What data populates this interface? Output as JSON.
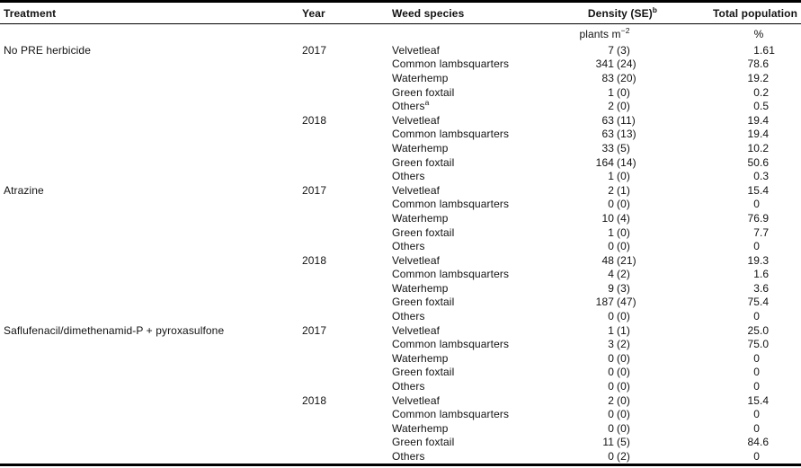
{
  "table": {
    "columns": [
      {
        "label": "Treatment"
      },
      {
        "label": "Year"
      },
      {
        "label": "Weed species"
      },
      {
        "label": "Density (SE)",
        "sup": "b"
      },
      {
        "label": "Total population"
      }
    ],
    "units": {
      "density": "plants m",
      "density_sup": "−2",
      "total": "%"
    },
    "rows": [
      {
        "treatment": "No PRE herbicide",
        "year": "2017",
        "species": "Velvetleaf",
        "density": "7 (3)",
        "total": "1.61"
      },
      {
        "treatment": "",
        "year": "",
        "species": "Common lambsquarters",
        "density": "341 (24)",
        "total": "78.6"
      },
      {
        "treatment": "",
        "year": "",
        "species": "Waterhemp",
        "density": "83 (20)",
        "total": "19.2"
      },
      {
        "treatment": "",
        "year": "",
        "species": "Green foxtail",
        "density": "1 (0)",
        "total": "0.2"
      },
      {
        "treatment": "",
        "year": "",
        "species": "Others",
        "sup": "a",
        "density": "2 (0)",
        "total": "0.5"
      },
      {
        "treatment": "",
        "year": "2018",
        "species": "Velvetleaf",
        "density": "63 (11)",
        "total": "19.4"
      },
      {
        "treatment": "",
        "year": "",
        "species": "Common lambsquarters",
        "density": "63 (13)",
        "total": "19.4"
      },
      {
        "treatment": "",
        "year": "",
        "species": "Waterhemp",
        "density": "33 (5)",
        "total": "10.2"
      },
      {
        "treatment": "",
        "year": "",
        "species": "Green foxtail",
        "density": "164 (14)",
        "total": "50.6"
      },
      {
        "treatment": "",
        "year": "",
        "species": "Others",
        "density": "1 (0)",
        "total": "0.3"
      },
      {
        "treatment": "Atrazine",
        "year": "2017",
        "species": "Velvetleaf",
        "density": "2 (1)",
        "total": "15.4"
      },
      {
        "treatment": "",
        "year": "",
        "species": "Common lambsquarters",
        "density": "0 (0)",
        "total": "0"
      },
      {
        "treatment": "",
        "year": "",
        "species": "Waterhemp",
        "density": "10 (4)",
        "total": "76.9"
      },
      {
        "treatment": "",
        "year": "",
        "species": "Green foxtail",
        "density": "1 (0)",
        "total": "7.7"
      },
      {
        "treatment": "",
        "year": "",
        "species": "Others",
        "density": "0 (0)",
        "total": "0"
      },
      {
        "treatment": "",
        "year": "2018",
        "species": "Velvetleaf",
        "density": "48 (21)",
        "total": "19.3"
      },
      {
        "treatment": "",
        "year": "",
        "species": "Common lambsquarters",
        "density": "4 (2)",
        "total": "1.6"
      },
      {
        "treatment": "",
        "year": "",
        "species": "Waterhemp",
        "density": "9 (3)",
        "total": "3.6"
      },
      {
        "treatment": "",
        "year": "",
        "species": "Green foxtail",
        "density": "187 (47)",
        "total": "75.4"
      },
      {
        "treatment": "",
        "year": "",
        "species": "Others",
        "density": "0 (0)",
        "total": "0"
      },
      {
        "treatment": "Saflufenacil/dimethenamid-P + pyroxasulfone",
        "year": "2017",
        "species": "Velvetleaf",
        "density": "1 (1)",
        "total": "25.0"
      },
      {
        "treatment": "",
        "year": "",
        "species": "Common lambsquarters",
        "density": "3 (2)",
        "total": "75.0"
      },
      {
        "treatment": "",
        "year": "",
        "species": "Waterhemp",
        "density": "0 (0)",
        "total": "0"
      },
      {
        "treatment": "",
        "year": "",
        "species": "Green foxtail",
        "density": "0 (0)",
        "total": "0"
      },
      {
        "treatment": "",
        "year": "",
        "species": "Others",
        "density": "0(0)",
        "total": "0"
      },
      {
        "treatment": "",
        "year": "2018",
        "species": "Velvetleaf",
        "density": "2 (0)",
        "total": "15.4"
      },
      {
        "treatment": "",
        "year": "",
        "species": "Common lambsquarters",
        "density": "0 (0)",
        "total": "0"
      },
      {
        "treatment": "",
        "year": "",
        "species": "Waterhemp",
        "density": "0 (0)",
        "total": "0"
      },
      {
        "treatment": "",
        "year": "",
        "species": "Green foxtail",
        "density": "11 (5)",
        "total": "84.6"
      },
      {
        "treatment": "",
        "year": "",
        "species": "Others",
        "density": "0 (2)",
        "total": "0"
      }
    ]
  }
}
